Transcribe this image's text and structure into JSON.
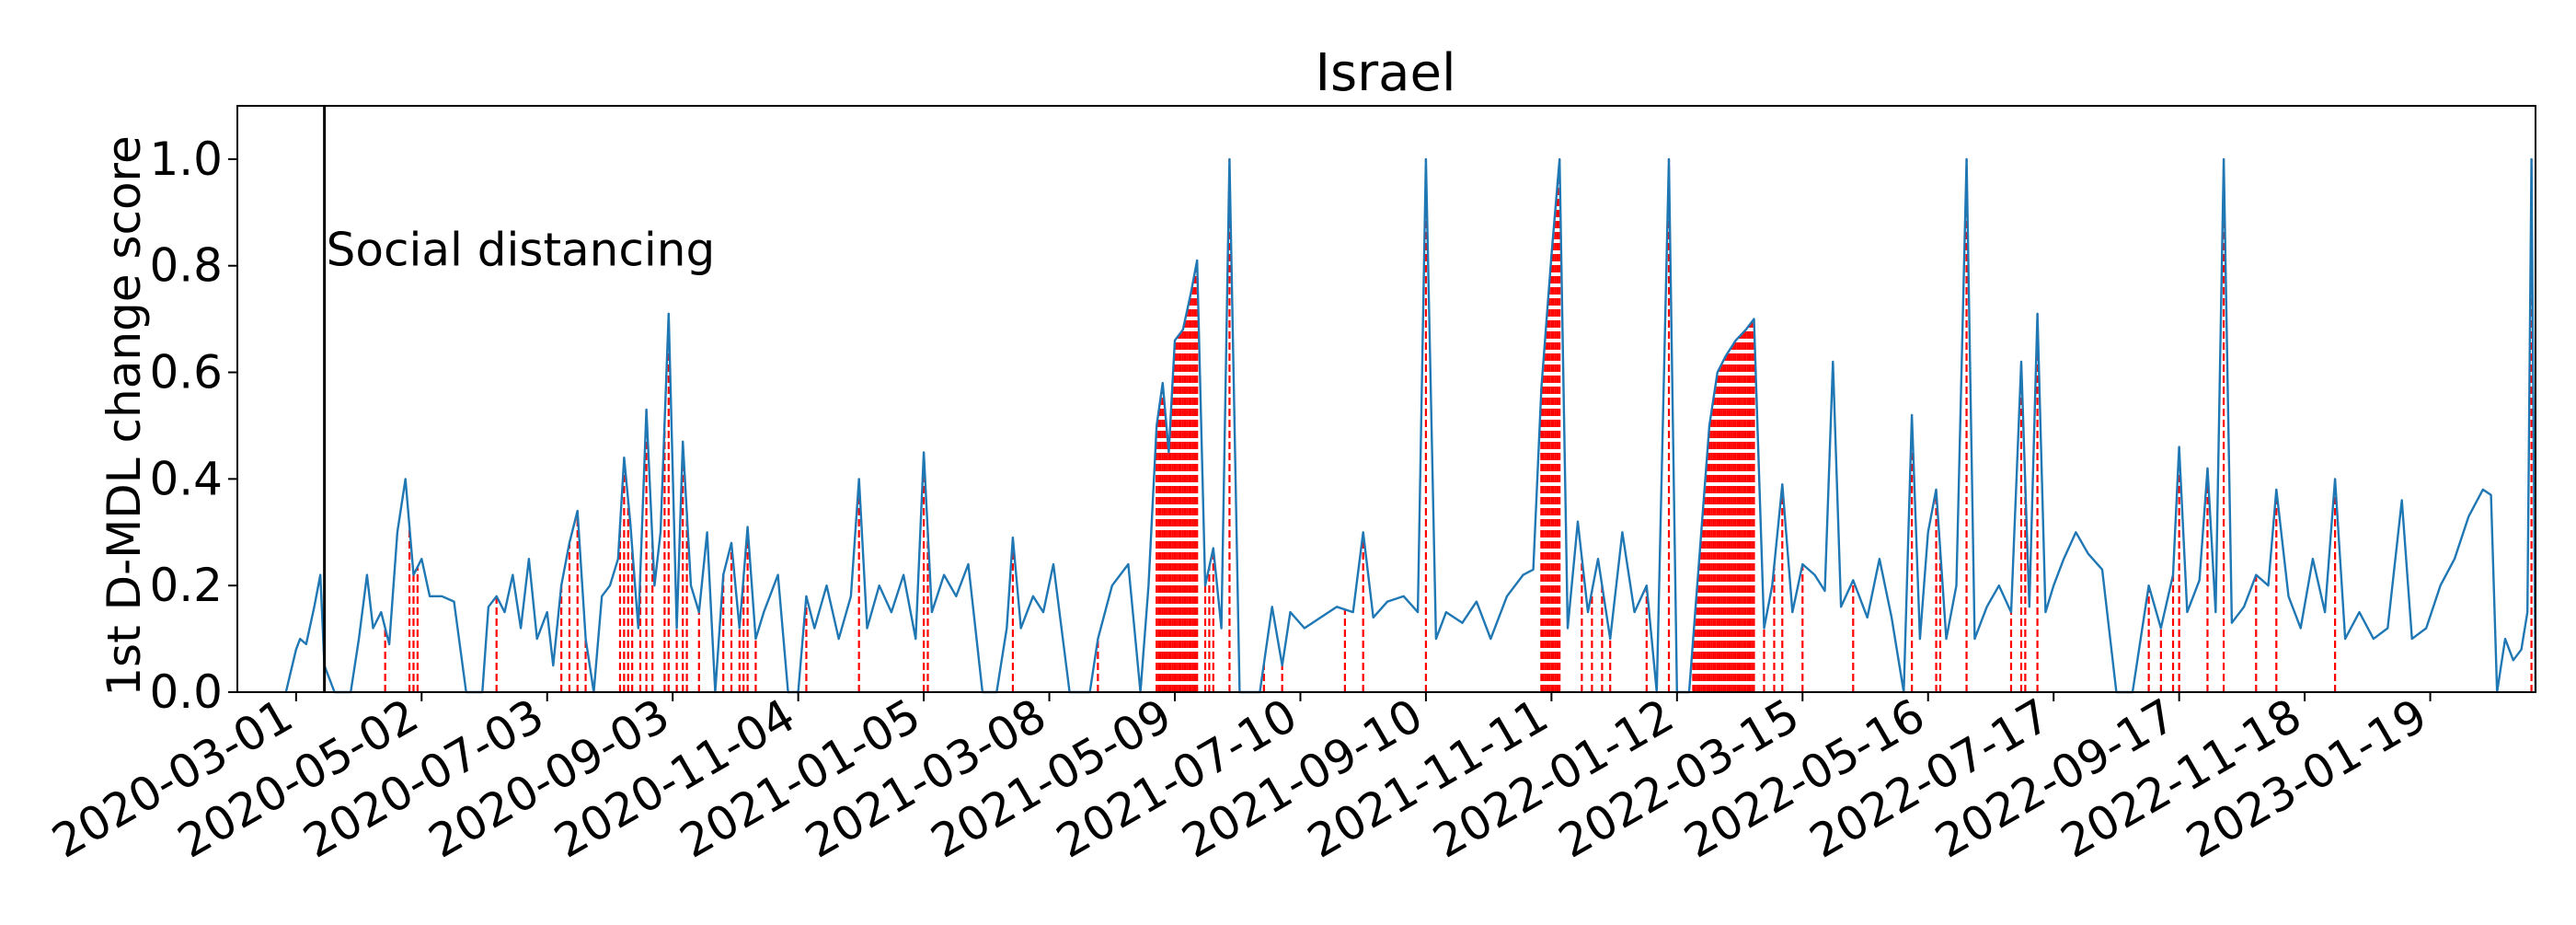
{
  "chart_data": {
    "type": "line",
    "title": "Israel",
    "xlabel": "",
    "ylabel": "1st D-MDL change score",
    "x_start": "2020-02-01",
    "x_end": "2023-03-12",
    "xlim": [
      "2020-02-01",
      "2023-03-12"
    ],
    "ylim": [
      0.0,
      1.1
    ],
    "grid": false,
    "legend": "none",
    "x_ticks": [
      "2020-03-01",
      "2020-05-02",
      "2020-07-03",
      "2020-09-03",
      "2020-11-04",
      "2021-01-05",
      "2021-03-08",
      "2021-05-09",
      "2021-07-10",
      "2021-09-10",
      "2021-11-11",
      "2022-01-12",
      "2022-03-15",
      "2022-05-16",
      "2022-07-17",
      "2022-09-17",
      "2022-11-18",
      "2023-01-19"
    ],
    "y_ticks": [
      "0.0",
      "0.2",
      "0.4",
      "0.6",
      "0.8",
      "1.0"
    ],
    "colors": {
      "series": "#1f77b4",
      "alarms": "#ff0000",
      "event_line": "#000000"
    },
    "event": {
      "date": "2020-03-15",
      "label": "Social distancing"
    },
    "series": [
      {
        "points": [
          [
            "2020-02-25",
            0.0
          ],
          [
            "2020-03-01",
            0.08
          ],
          [
            "2020-03-03",
            0.1
          ],
          [
            "2020-03-06",
            0.09
          ],
          [
            "2020-03-10",
            0.16
          ],
          [
            "2020-03-13",
            0.22
          ],
          [
            "2020-03-15",
            0.05
          ],
          [
            "2020-03-20",
            0.0
          ],
          [
            "2020-03-28",
            0.0
          ],
          [
            "2020-04-01",
            0.1
          ],
          [
            "2020-04-05",
            0.22
          ],
          [
            "2020-04-08",
            0.12
          ],
          [
            "2020-04-12",
            0.15
          ],
          [
            "2020-04-16",
            0.09
          ],
          [
            "2020-04-20",
            0.3
          ],
          [
            "2020-04-24",
            0.4
          ],
          [
            "2020-04-28",
            0.22
          ],
          [
            "2020-05-02",
            0.25
          ],
          [
            "2020-05-06",
            0.18
          ],
          [
            "2020-05-12",
            0.18
          ],
          [
            "2020-05-18",
            0.17
          ],
          [
            "2020-05-24",
            0.0
          ],
          [
            "2020-06-01",
            0.0
          ],
          [
            "2020-06-04",
            0.16
          ],
          [
            "2020-06-08",
            0.18
          ],
          [
            "2020-06-12",
            0.15
          ],
          [
            "2020-06-16",
            0.22
          ],
          [
            "2020-06-20",
            0.12
          ],
          [
            "2020-06-24",
            0.25
          ],
          [
            "2020-06-28",
            0.1
          ],
          [
            "2020-07-03",
            0.15
          ],
          [
            "2020-07-06",
            0.05
          ],
          [
            "2020-07-10",
            0.2
          ],
          [
            "2020-07-14",
            0.28
          ],
          [
            "2020-07-18",
            0.34
          ],
          [
            "2020-07-22",
            0.1
          ],
          [
            "2020-07-26",
            0.0
          ],
          [
            "2020-07-30",
            0.18
          ],
          [
            "2020-08-03",
            0.2
          ],
          [
            "2020-08-07",
            0.25
          ],
          [
            "2020-08-10",
            0.44
          ],
          [
            "2020-08-13",
            0.32
          ],
          [
            "2020-08-17",
            0.12
          ],
          [
            "2020-08-21",
            0.53
          ],
          [
            "2020-08-25",
            0.2
          ],
          [
            "2020-08-28",
            0.3
          ],
          [
            "2020-09-01",
            0.71
          ],
          [
            "2020-09-05",
            0.12
          ],
          [
            "2020-09-08",
            0.47
          ],
          [
            "2020-09-12",
            0.2
          ],
          [
            "2020-09-16",
            0.15
          ],
          [
            "2020-09-20",
            0.3
          ],
          [
            "2020-09-24",
            0.0
          ],
          [
            "2020-09-28",
            0.22
          ],
          [
            "2020-10-02",
            0.28
          ],
          [
            "2020-10-06",
            0.12
          ],
          [
            "2020-10-10",
            0.31
          ],
          [
            "2020-10-14",
            0.1
          ],
          [
            "2020-10-18",
            0.15
          ],
          [
            "2020-10-25",
            0.22
          ],
          [
            "2020-10-30",
            0.0
          ],
          [
            "2020-11-04",
            0.0
          ],
          [
            "2020-11-08",
            0.18
          ],
          [
            "2020-11-12",
            0.12
          ],
          [
            "2020-11-18",
            0.2
          ],
          [
            "2020-11-24",
            0.1
          ],
          [
            "2020-11-30",
            0.18
          ],
          [
            "2020-12-04",
            0.4
          ],
          [
            "2020-12-08",
            0.12
          ],
          [
            "2020-12-14",
            0.2
          ],
          [
            "2020-12-20",
            0.15
          ],
          [
            "2020-12-26",
            0.22
          ],
          [
            "2021-01-01",
            0.1
          ],
          [
            "2021-01-05",
            0.45
          ],
          [
            "2021-01-09",
            0.15
          ],
          [
            "2021-01-15",
            0.22
          ],
          [
            "2021-01-21",
            0.18
          ],
          [
            "2021-01-27",
            0.24
          ],
          [
            "2021-02-03",
            0.0
          ],
          [
            "2021-02-10",
            0.0
          ],
          [
            "2021-02-15",
            0.12
          ],
          [
            "2021-02-18",
            0.29
          ],
          [
            "2021-02-22",
            0.12
          ],
          [
            "2021-02-28",
            0.18
          ],
          [
            "2021-03-05",
            0.15
          ],
          [
            "2021-03-10",
            0.24
          ],
          [
            "2021-03-18",
            0.0
          ],
          [
            "2021-03-28",
            0.0
          ],
          [
            "2021-04-01",
            0.1
          ],
          [
            "2021-04-08",
            0.2
          ],
          [
            "2021-04-16",
            0.24
          ],
          [
            "2021-04-22",
            0.0
          ],
          [
            "2021-04-26",
            0.2
          ],
          [
            "2021-04-30",
            0.5
          ],
          [
            "2021-05-03",
            0.58
          ],
          [
            "2021-05-06",
            0.45
          ],
          [
            "2021-05-09",
            0.66
          ],
          [
            "2021-05-13",
            0.68
          ],
          [
            "2021-05-17",
            0.75
          ],
          [
            "2021-05-20",
            0.81
          ],
          [
            "2021-05-24",
            0.2
          ],
          [
            "2021-05-28",
            0.27
          ],
          [
            "2021-06-01",
            0.12
          ],
          [
            "2021-06-05",
            1.0
          ],
          [
            "2021-06-10",
            0.0
          ],
          [
            "2021-06-20",
            0.0
          ],
          [
            "2021-06-26",
            0.16
          ],
          [
            "2021-07-01",
            0.05
          ],
          [
            "2021-07-05",
            0.15
          ],
          [
            "2021-07-12",
            0.12
          ],
          [
            "2021-07-20",
            0.14
          ],
          [
            "2021-07-28",
            0.16
          ],
          [
            "2021-08-05",
            0.15
          ],
          [
            "2021-08-10",
            0.3
          ],
          [
            "2021-08-15",
            0.14
          ],
          [
            "2021-08-22",
            0.17
          ],
          [
            "2021-08-30",
            0.18
          ],
          [
            "2021-09-06",
            0.15
          ],
          [
            "2021-09-10",
            1.0
          ],
          [
            "2021-09-15",
            0.1
          ],
          [
            "2021-09-20",
            0.15
          ],
          [
            "2021-09-28",
            0.13
          ],
          [
            "2021-10-05",
            0.17
          ],
          [
            "2021-10-12",
            0.1
          ],
          [
            "2021-10-20",
            0.18
          ],
          [
            "2021-10-28",
            0.22
          ],
          [
            "2021-11-02",
            0.23
          ],
          [
            "2021-11-06",
            0.57
          ],
          [
            "2021-11-11",
            0.82
          ],
          [
            "2021-11-15",
            1.0
          ],
          [
            "2021-11-19",
            0.12
          ],
          [
            "2021-11-24",
            0.32
          ],
          [
            "2021-11-29",
            0.15
          ],
          [
            "2021-12-04",
            0.25
          ],
          [
            "2021-12-10",
            0.1
          ],
          [
            "2021-12-16",
            0.3
          ],
          [
            "2021-12-22",
            0.15
          ],
          [
            "2021-12-28",
            0.2
          ],
          [
            "2022-01-02",
            0.0
          ],
          [
            "2022-01-08",
            1.0
          ],
          [
            "2022-01-12",
            0.0
          ],
          [
            "2022-01-18",
            0.0
          ],
          [
            "2022-01-24",
            0.3
          ],
          [
            "2022-01-28",
            0.5
          ],
          [
            "2022-02-01",
            0.6
          ],
          [
            "2022-02-05",
            0.63
          ],
          [
            "2022-02-10",
            0.66
          ],
          [
            "2022-02-15",
            0.68
          ],
          [
            "2022-02-19",
            0.7
          ],
          [
            "2022-02-24",
            0.12
          ],
          [
            "2022-02-28",
            0.2
          ],
          [
            "2022-03-05",
            0.39
          ],
          [
            "2022-03-10",
            0.15
          ],
          [
            "2022-03-15",
            0.24
          ],
          [
            "2022-03-21",
            0.22
          ],
          [
            "2022-03-26",
            0.19
          ],
          [
            "2022-03-30",
            0.62
          ],
          [
            "2022-04-03",
            0.16
          ],
          [
            "2022-04-09",
            0.21
          ],
          [
            "2022-04-16",
            0.14
          ],
          [
            "2022-04-22",
            0.25
          ],
          [
            "2022-04-28",
            0.14
          ],
          [
            "2022-05-04",
            0.0
          ],
          [
            "2022-05-08",
            0.52
          ],
          [
            "2022-05-12",
            0.1
          ],
          [
            "2022-05-16",
            0.3
          ],
          [
            "2022-05-20",
            0.38
          ],
          [
            "2022-05-25",
            0.1
          ],
          [
            "2022-05-30",
            0.2
          ],
          [
            "2022-06-04",
            1.0
          ],
          [
            "2022-06-08",
            0.1
          ],
          [
            "2022-06-14",
            0.16
          ],
          [
            "2022-06-20",
            0.2
          ],
          [
            "2022-06-26",
            0.15
          ],
          [
            "2022-07-01",
            0.62
          ],
          [
            "2022-07-05",
            0.16
          ],
          [
            "2022-07-09",
            0.71
          ],
          [
            "2022-07-13",
            0.15
          ],
          [
            "2022-07-17",
            0.2
          ],
          [
            "2022-07-22",
            0.25
          ],
          [
            "2022-07-28",
            0.3
          ],
          [
            "2022-08-03",
            0.26
          ],
          [
            "2022-08-10",
            0.23
          ],
          [
            "2022-08-17",
            0.0
          ],
          [
            "2022-08-25",
            0.0
          ],
          [
            "2022-09-02",
            0.2
          ],
          [
            "2022-09-08",
            0.12
          ],
          [
            "2022-09-14",
            0.22
          ],
          [
            "2022-09-17",
            0.46
          ],
          [
            "2022-09-21",
            0.15
          ],
          [
            "2022-09-27",
            0.21
          ],
          [
            "2022-10-01",
            0.42
          ],
          [
            "2022-10-05",
            0.15
          ],
          [
            "2022-10-09",
            1.0
          ],
          [
            "2022-10-13",
            0.13
          ],
          [
            "2022-10-19",
            0.16
          ],
          [
            "2022-10-25",
            0.22
          ],
          [
            "2022-10-31",
            0.2
          ],
          [
            "2022-11-04",
            0.38
          ],
          [
            "2022-11-10",
            0.18
          ],
          [
            "2022-11-16",
            0.12
          ],
          [
            "2022-11-22",
            0.25
          ],
          [
            "2022-11-28",
            0.15
          ],
          [
            "2022-12-03",
            0.4
          ],
          [
            "2022-12-08",
            0.1
          ],
          [
            "2022-12-15",
            0.15
          ],
          [
            "2022-12-22",
            0.1
          ],
          [
            "2022-12-29",
            0.12
          ],
          [
            "2023-01-05",
            0.36
          ],
          [
            "2023-01-10",
            0.1
          ],
          [
            "2023-01-17",
            0.12
          ],
          [
            "2023-01-24",
            0.2
          ],
          [
            "2023-01-31",
            0.25
          ],
          [
            "2023-02-07",
            0.33
          ],
          [
            "2023-02-14",
            0.38
          ],
          [
            "2023-02-18",
            0.37
          ],
          [
            "2023-02-21",
            0.0
          ],
          [
            "2023-02-25",
            0.1
          ],
          [
            "2023-03-01",
            0.06
          ],
          [
            "2023-03-05",
            0.08
          ],
          [
            "2023-03-08",
            0.15
          ],
          [
            "2023-03-10",
            1.0
          ],
          [
            "2023-03-12",
            0.0
          ]
        ]
      }
    ],
    "alarms": [
      "2020-04-14",
      "2020-04-26",
      "2020-04-28",
      "2020-04-30",
      "2020-06-08",
      "2020-07-10",
      "2020-07-14",
      "2020-07-18",
      "2020-07-22",
      "2020-08-08",
      "2020-08-10",
      "2020-08-12",
      "2020-08-14",
      "2020-08-18",
      "2020-08-21",
      "2020-08-24",
      "2020-08-30",
      "2020-09-01",
      "2020-09-05",
      "2020-09-08",
      "2020-09-10",
      "2020-09-16",
      "2020-09-28",
      "2020-10-02",
      "2020-10-06",
      "2020-10-08",
      "2020-10-10",
      "2020-10-14",
      "2020-11-08",
      "2020-12-04",
      "2021-01-05",
      "2021-01-07",
      "2021-02-18",
      "2021-04-01",
      "2021-04-30",
      {
        "from": "2021-05-01",
        "to": "2021-05-20"
      },
      "2021-05-24",
      "2021-05-26",
      "2021-05-28",
      "2021-06-05",
      "2021-06-22",
      "2021-07-01",
      "2021-08-01",
      "2021-08-10",
      "2021-09-10",
      "2021-11-06",
      {
        "from": "2021-11-07",
        "to": "2021-11-15"
      },
      "2021-11-26",
      "2021-12-01",
      "2021-12-06",
      "2021-12-10",
      "2021-12-28",
      "2022-01-02",
      "2022-01-08",
      {
        "from": "2022-01-20",
        "to": "2022-02-19"
      },
      "2022-02-24",
      "2022-03-01",
      "2022-03-05",
      "2022-03-15",
      "2022-04-09",
      "2022-05-08",
      "2022-05-20",
      "2022-05-22",
      "2022-06-04",
      "2022-06-26",
      "2022-07-01",
      "2022-07-03",
      "2022-07-09",
      "2022-09-02",
      "2022-09-08",
      "2022-09-14",
      "2022-09-17",
      "2022-10-01",
      "2022-10-09",
      "2022-10-25",
      "2022-11-04",
      "2022-12-03",
      "2023-03-10"
    ]
  }
}
